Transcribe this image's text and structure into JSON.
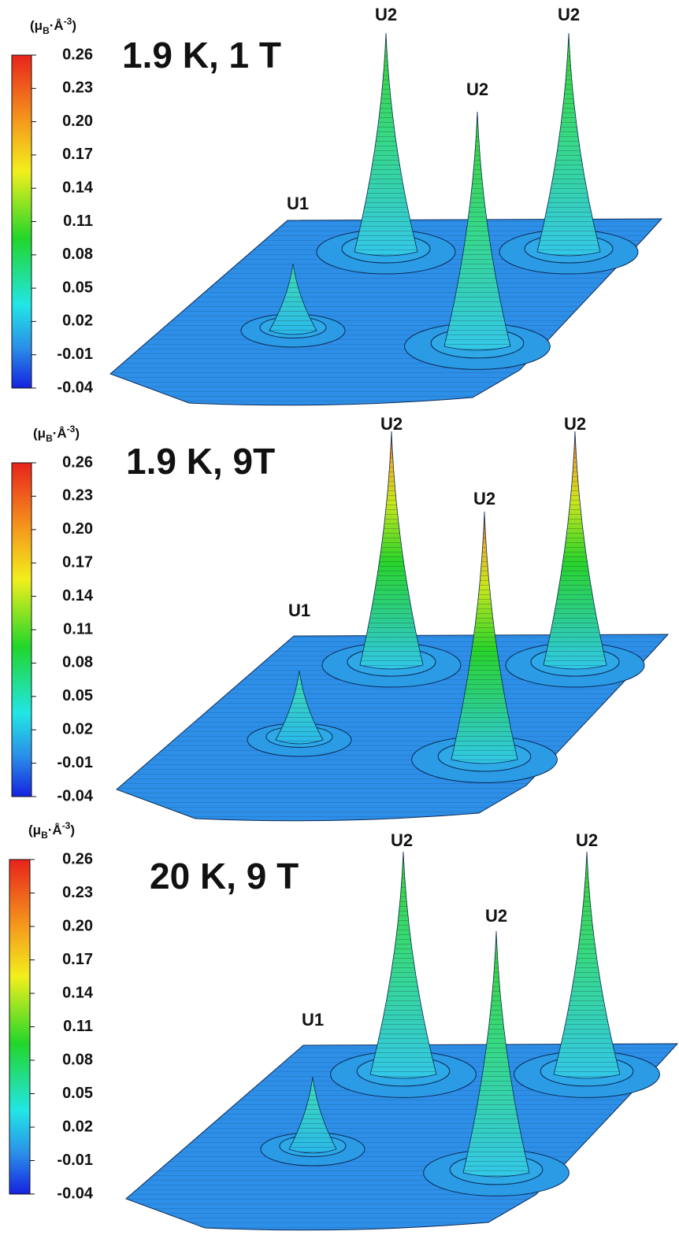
{
  "panels": [
    {
      "title": "1.9 K, 1 T",
      "unit": {
        "open": "(μ",
        "sub": "B",
        "mid": "·Å",
        "sup": "-3",
        "close": ")"
      },
      "colorbar_ticks": [
        "0.26",
        "0.23",
        "0.20",
        "0.17",
        "0.14",
        "0.11",
        "0.08",
        "0.05",
        "0.02",
        "-0.01",
        "-0.04"
      ],
      "peak_labels": [
        "U2",
        "U2",
        "U2",
        "U1"
      ]
    },
    {
      "title": "1.9 K, 9T",
      "unit": {
        "open": "(μ",
        "sub": "B",
        "mid": "·Å",
        "sup": "-3",
        "close": ")"
      },
      "colorbar_ticks": [
        "0.26",
        "0.23",
        "0.20",
        "0.17",
        "0.14",
        "0.11",
        "0.08",
        "0.05",
        "0.02",
        "-0.01",
        "-0.04"
      ],
      "peak_labels": [
        "U2",
        "U2",
        "U2",
        "U1"
      ]
    },
    {
      "title": "20 K, 9 T",
      "unit": {
        "open": "(μ",
        "sub": "B",
        "mid": "·Å",
        "sup": "-3",
        "close": ")"
      },
      "colorbar_ticks": [
        "0.26",
        "0.23",
        "0.20",
        "0.17",
        "0.14",
        "0.11",
        "0.08",
        "0.05",
        "0.02",
        "-0.01",
        "-0.04"
      ],
      "peak_labels": [
        "U2",
        "U2",
        "U2",
        "U1"
      ]
    }
  ]
}
